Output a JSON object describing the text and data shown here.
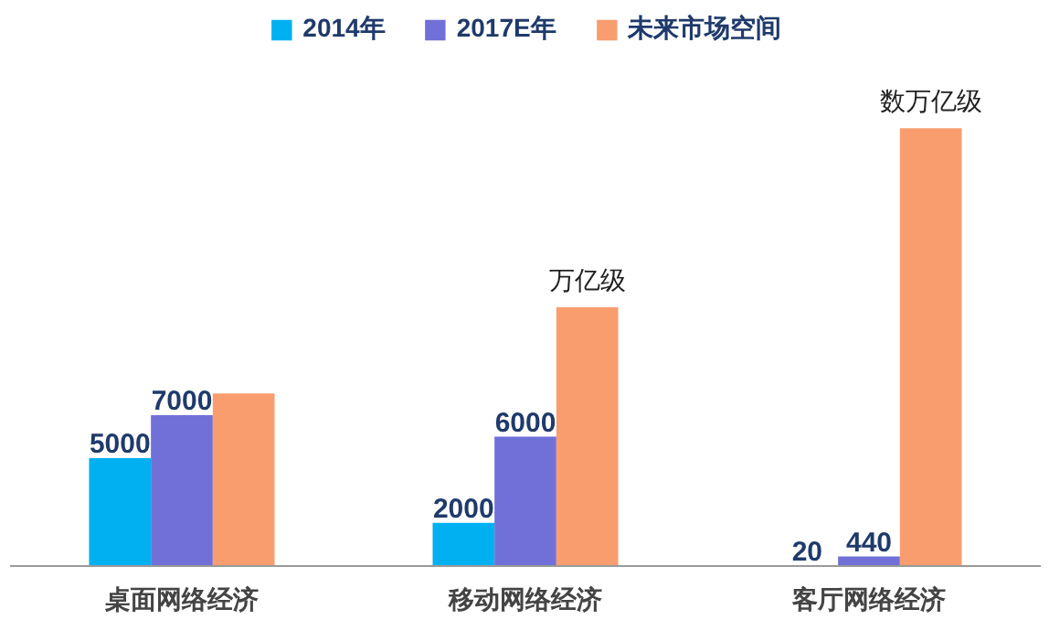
{
  "chart_data": {
    "type": "bar",
    "categories": [
      "桌面网络经济",
      "移动网络经济",
      "客厅网络经济"
    ],
    "series": [
      {
        "name": "2014年",
        "color": "#00b0f0",
        "values": [
          5000,
          2000,
          20
        ],
        "value_labels": [
          "5000",
          "2000",
          "20"
        ]
      },
      {
        "name": "2017E年",
        "color": "#7070d8",
        "values": [
          7000,
          6000,
          440
        ],
        "value_labels": [
          "7000",
          "6000",
          "440"
        ]
      },
      {
        "name": "未来市场空间",
        "color": "#f99d6e",
        "values": [
          8000,
          12000,
          20300
        ]
      }
    ],
    "annotations": [
      "万亿级",
      "数万亿级"
    ],
    "legend": "top",
    "grid": false
  }
}
